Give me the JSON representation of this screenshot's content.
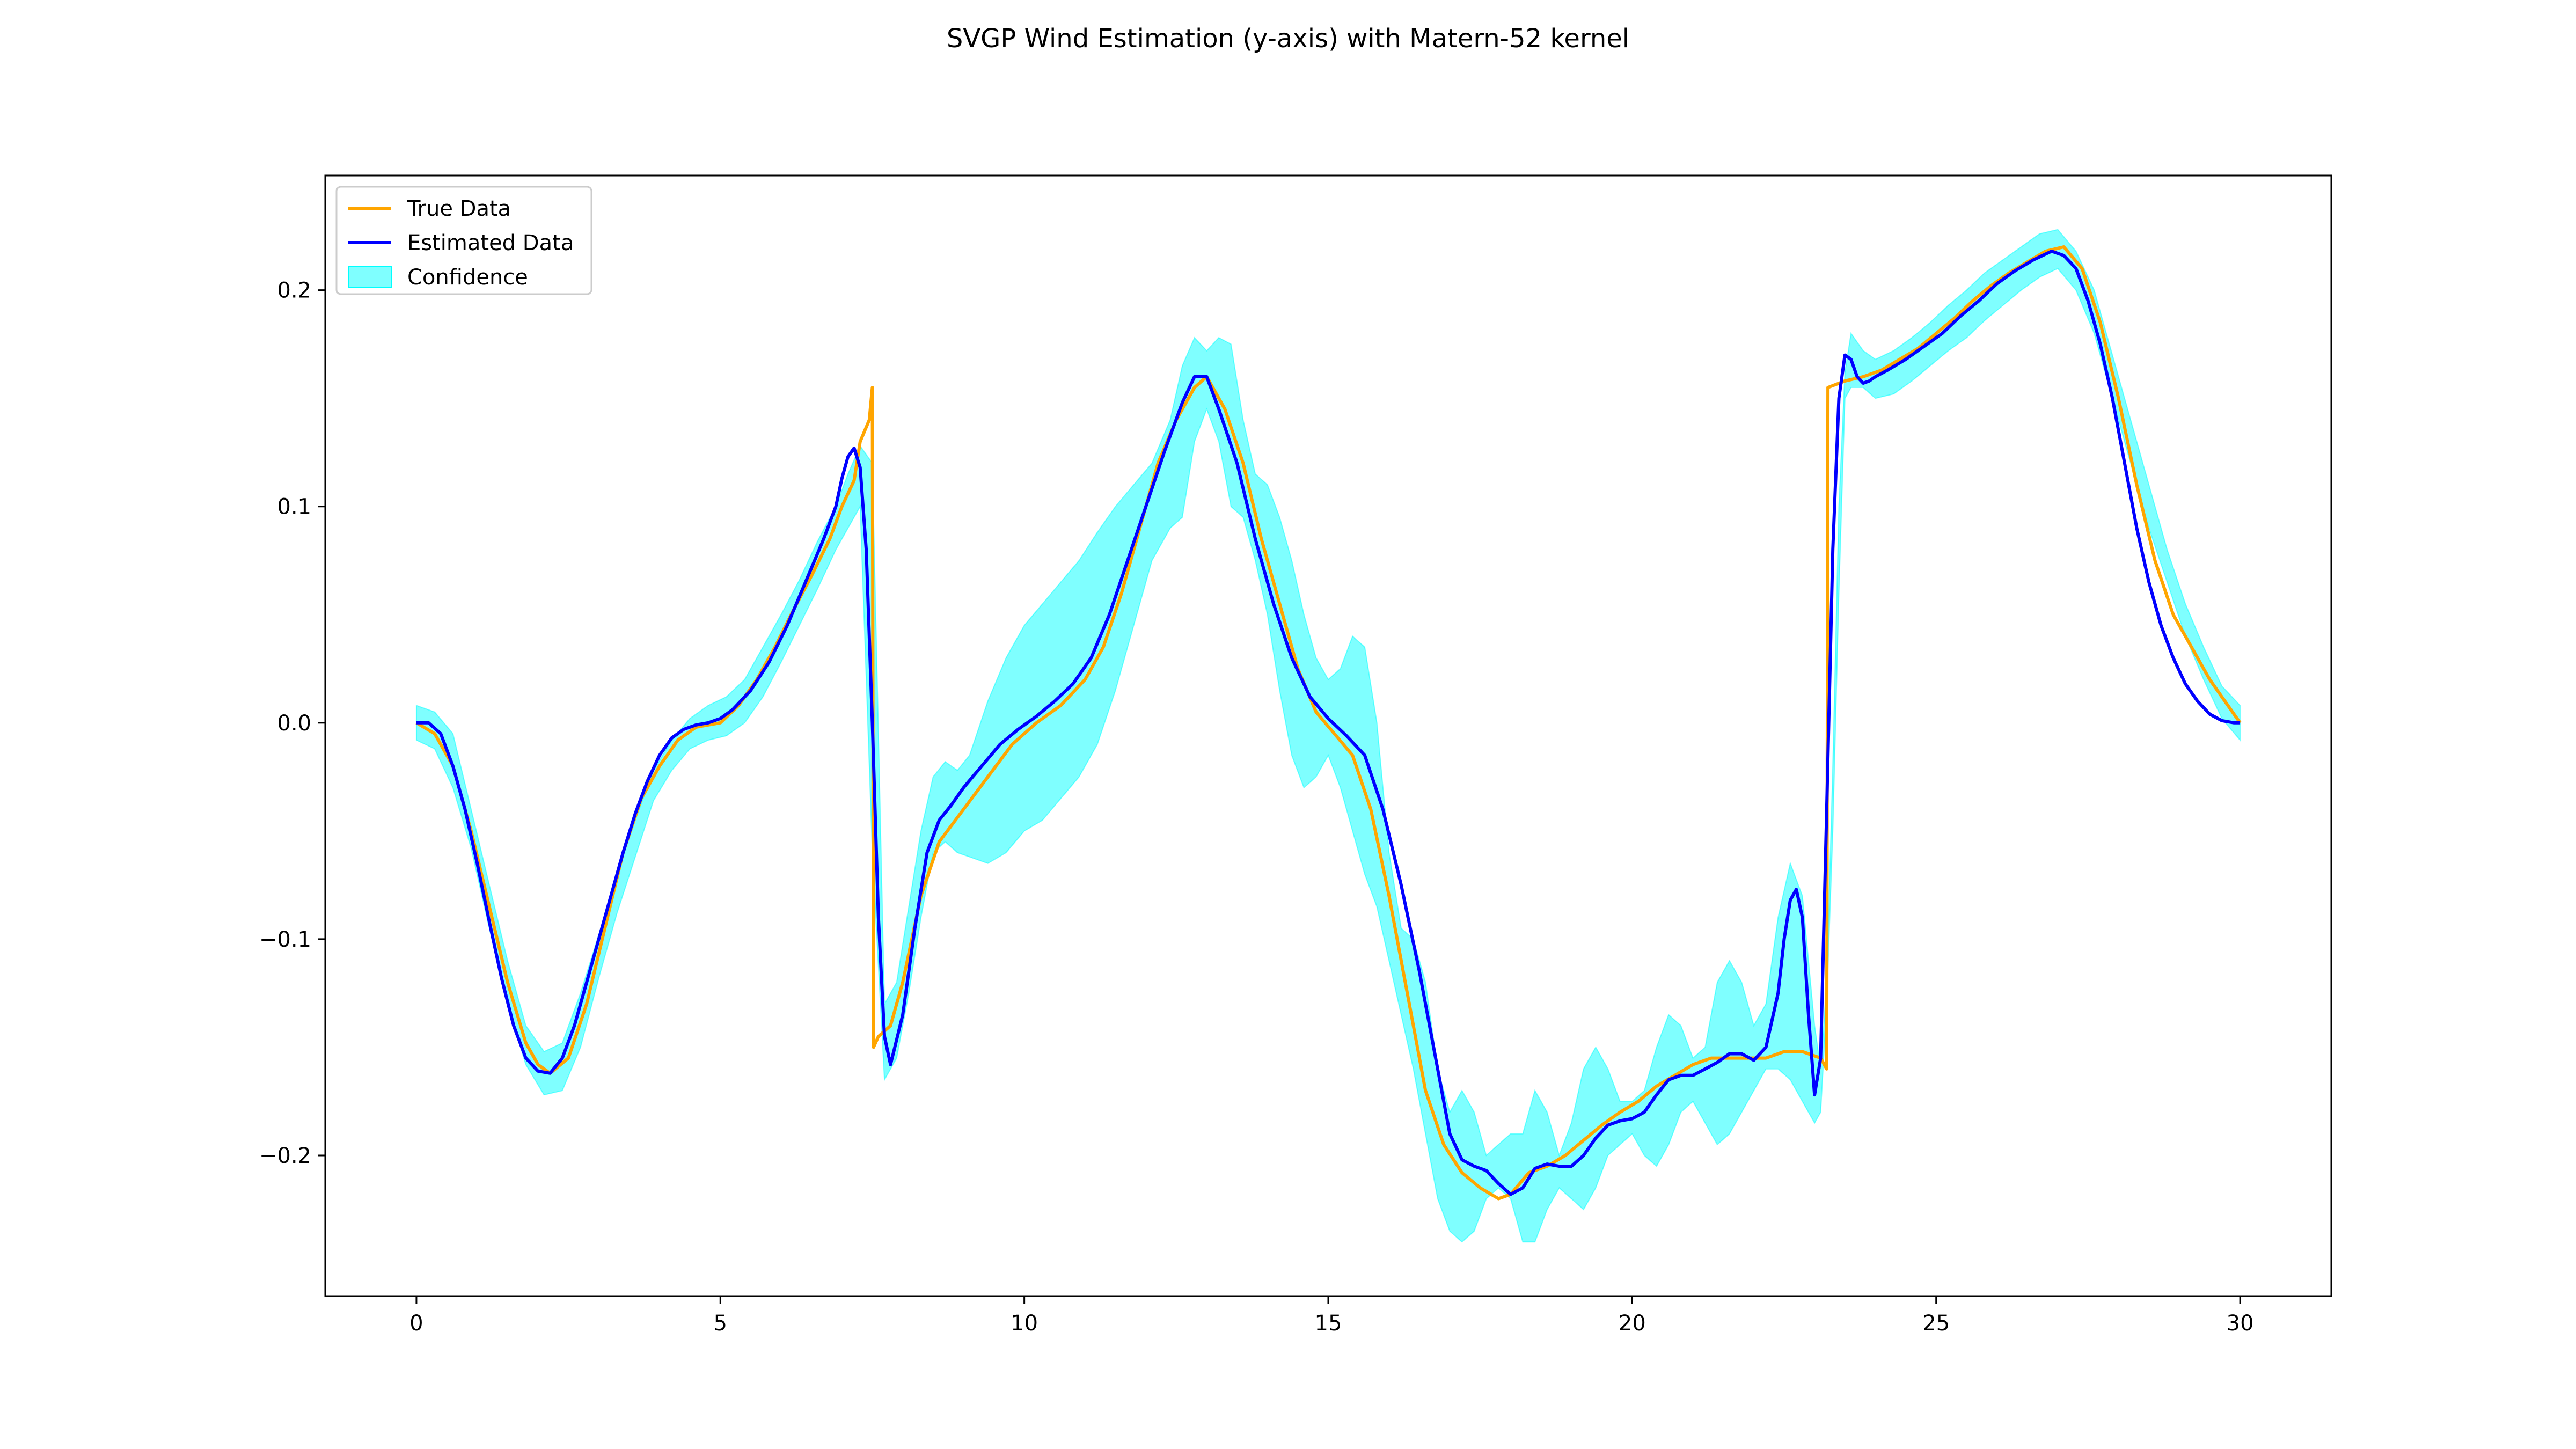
{
  "chart_data": {
    "type": "line",
    "title": "SVGP Wind Estimation (y-axis) with Matern-52 kernel",
    "xlabel": "",
    "ylabel": "",
    "xlim": [
      -1.5,
      31.5
    ],
    "ylim": [
      -0.265,
      0.253
    ],
    "xticks": [
      0,
      5,
      10,
      15,
      20,
      25,
      30
    ],
    "yticks": [
      -0.2,
      -0.1,
      0.0,
      0.1,
      0.2
    ],
    "ytick_labels": [
      "−0.2",
      "−0.1",
      "0.0",
      "0.1",
      "0.2"
    ],
    "grid": false,
    "legend_position": "upper-left",
    "colors": {
      "true": "#ffa500",
      "estimated": "#0000ff",
      "confidence": "#00ffff"
    },
    "series": [
      {
        "name": "True Data",
        "x": [
          0,
          0.3,
          0.6,
          0.9,
          1.2,
          1.5,
          1.8,
          2.0,
          2.2,
          2.5,
          2.8,
          3.1,
          3.4,
          3.7,
          4.0,
          4.3,
          4.6,
          5.0,
          5.3,
          5.6,
          5.9,
          6.2,
          6.5,
          6.8,
          7.0,
          7.2,
          7.3,
          7.45,
          7.5,
          7.52,
          7.6,
          7.8,
          8.0,
          8.3,
          8.6,
          9.0,
          9.4,
          9.8,
          10.2,
          10.6,
          11.0,
          11.3,
          11.6,
          11.9,
          12.2,
          12.5,
          12.8,
          13.0,
          13.3,
          13.6,
          13.9,
          14.2,
          14.5,
          14.8,
          15.1,
          15.4,
          15.7,
          16.0,
          16.3,
          16.6,
          16.9,
          17.2,
          17.5,
          17.8,
          18.0,
          18.3,
          18.6,
          18.9,
          19.2,
          19.5,
          19.8,
          20.1,
          20.4,
          20.7,
          21.0,
          21.3,
          21.6,
          21.9,
          22.2,
          22.5,
          22.8,
          23.1,
          23.2,
          23.22,
          23.5,
          23.8,
          24.1,
          24.4,
          24.7,
          25.0,
          25.3,
          25.6,
          25.9,
          26.2,
          26.5,
          26.8,
          27.1,
          27.4,
          27.7,
          28.0,
          28.3,
          28.6,
          28.9,
          29.2,
          29.5,
          29.8,
          30.0
        ],
        "y": [
          0.0,
          -0.005,
          -0.02,
          -0.05,
          -0.085,
          -0.12,
          -0.148,
          -0.158,
          -0.162,
          -0.155,
          -0.13,
          -0.095,
          -0.06,
          -0.035,
          -0.02,
          -0.008,
          -0.002,
          0.0,
          0.008,
          0.02,
          0.035,
          0.052,
          0.068,
          0.085,
          0.1,
          0.112,
          0.13,
          0.14,
          0.155,
          -0.15,
          -0.145,
          -0.14,
          -0.12,
          -0.08,
          -0.055,
          -0.04,
          -0.025,
          -0.01,
          0.0,
          0.008,
          0.02,
          0.035,
          0.06,
          0.09,
          0.12,
          0.14,
          0.155,
          0.16,
          0.145,
          0.12,
          0.085,
          0.055,
          0.025,
          0.005,
          -0.005,
          -0.015,
          -0.04,
          -0.08,
          -0.125,
          -0.17,
          -0.195,
          -0.208,
          -0.215,
          -0.22,
          -0.218,
          -0.208,
          -0.205,
          -0.2,
          -0.193,
          -0.186,
          -0.18,
          -0.175,
          -0.168,
          -0.163,
          -0.158,
          -0.155,
          -0.155,
          -0.155,
          -0.155,
          -0.152,
          -0.152,
          -0.155,
          -0.16,
          0.155,
          0.158,
          0.16,
          0.163,
          0.168,
          0.173,
          0.18,
          0.187,
          0.195,
          0.202,
          0.208,
          0.213,
          0.218,
          0.22,
          0.21,
          0.185,
          0.15,
          0.11,
          0.075,
          0.05,
          0.035,
          0.02,
          0.008,
          0.0
        ]
      },
      {
        "name": "Estimated Data",
        "x": [
          0,
          0.2,
          0.4,
          0.6,
          0.8,
          1.0,
          1.2,
          1.4,
          1.6,
          1.8,
          2.0,
          2.2,
          2.4,
          2.6,
          2.8,
          3.0,
          3.2,
          3.4,
          3.6,
          3.8,
          4.0,
          4.2,
          4.4,
          4.6,
          4.8,
          5.0,
          5.2,
          5.5,
          5.8,
          6.1,
          6.4,
          6.7,
          6.9,
          7.0,
          7.1,
          7.2,
          7.3,
          7.4,
          7.5,
          7.6,
          7.7,
          7.8,
          8.0,
          8.2,
          8.4,
          8.6,
          8.8,
          9.0,
          9.3,
          9.6,
          9.9,
          10.2,
          10.5,
          10.8,
          11.1,
          11.4,
          11.7,
          12.0,
          12.3,
          12.6,
          12.8,
          13.0,
          13.2,
          13.5,
          13.8,
          14.1,
          14.4,
          14.7,
          15.0,
          15.3,
          15.6,
          15.9,
          16.2,
          16.5,
          16.8,
          17.0,
          17.2,
          17.4,
          17.6,
          17.8,
          18.0,
          18.2,
          18.4,
          18.6,
          18.8,
          19.0,
          19.2,
          19.4,
          19.6,
          19.8,
          20.0,
          20.2,
          20.4,
          20.6,
          20.8,
          21.0,
          21.2,
          21.4,
          21.6,
          21.8,
          22.0,
          22.2,
          22.4,
          22.5,
          22.6,
          22.7,
          22.8,
          22.9,
          23.0,
          23.1,
          23.2,
          23.3,
          23.4,
          23.5,
          23.6,
          23.7,
          23.8,
          23.9,
          24.0,
          24.2,
          24.5,
          24.8,
          25.1,
          25.4,
          25.7,
          26.0,
          26.3,
          26.6,
          26.9,
          27.1,
          27.3,
          27.5,
          27.7,
          27.9,
          28.1,
          28.3,
          28.5,
          28.7,
          28.9,
          29.1,
          29.3,
          29.5,
          29.7,
          29.9,
          30.0
        ],
        "y": [
          0.0,
          0.0,
          -0.005,
          -0.02,
          -0.04,
          -0.065,
          -0.092,
          -0.118,
          -0.14,
          -0.155,
          -0.161,
          -0.162,
          -0.155,
          -0.14,
          -0.12,
          -0.1,
          -0.08,
          -0.06,
          -0.042,
          -0.027,
          -0.015,
          -0.007,
          -0.003,
          -0.001,
          0.0,
          0.002,
          0.006,
          0.015,
          0.028,
          0.045,
          0.065,
          0.085,
          0.1,
          0.113,
          0.123,
          0.127,
          0.118,
          0.08,
          0.0,
          -0.09,
          -0.145,
          -0.158,
          -0.135,
          -0.095,
          -0.06,
          -0.045,
          -0.038,
          -0.03,
          -0.02,
          -0.01,
          -0.003,
          0.003,
          0.01,
          0.018,
          0.03,
          0.05,
          0.075,
          0.1,
          0.125,
          0.148,
          0.16,
          0.16,
          0.145,
          0.12,
          0.085,
          0.055,
          0.03,
          0.012,
          0.002,
          -0.006,
          -0.015,
          -0.04,
          -0.075,
          -0.115,
          -0.16,
          -0.19,
          -0.202,
          -0.205,
          -0.207,
          -0.213,
          -0.218,
          -0.215,
          -0.206,
          -0.204,
          -0.205,
          -0.205,
          -0.2,
          -0.192,
          -0.186,
          -0.184,
          -0.183,
          -0.18,
          -0.172,
          -0.165,
          -0.163,
          -0.163,
          -0.16,
          -0.157,
          -0.153,
          -0.153,
          -0.156,
          -0.15,
          -0.125,
          -0.1,
          -0.082,
          -0.077,
          -0.09,
          -0.135,
          -0.172,
          -0.155,
          -0.04,
          0.08,
          0.15,
          0.17,
          0.168,
          0.16,
          0.157,
          0.158,
          0.16,
          0.163,
          0.168,
          0.174,
          0.18,
          0.188,
          0.195,
          0.203,
          0.209,
          0.214,
          0.218,
          0.216,
          0.21,
          0.195,
          0.175,
          0.15,
          0.12,
          0.09,
          0.065,
          0.045,
          0.03,
          0.018,
          0.01,
          0.004,
          0.001,
          0.0,
          0.0
        ]
      },
      {
        "name": "Confidence",
        "x": [
          0,
          0.3,
          0.6,
          0.9,
          1.2,
          1.5,
          1.8,
          2.1,
          2.4,
          2.7,
          3.0,
          3.3,
          3.6,
          3.9,
          4.2,
          4.5,
          4.8,
          5.1,
          5.4,
          5.7,
          6.0,
          6.3,
          6.6,
          6.9,
          7.1,
          7.3,
          7.5,
          7.7,
          7.9,
          8.1,
          8.3,
          8.5,
          8.7,
          8.9,
          9.1,
          9.4,
          9.7,
          10.0,
          10.3,
          10.6,
          10.9,
          11.2,
          11.5,
          11.8,
          12.1,
          12.4,
          12.6,
          12.8,
          13.0,
          13.2,
          13.4,
          13.6,
          13.8,
          14.0,
          14.2,
          14.4,
          14.6,
          14.8,
          15.0,
          15.2,
          15.4,
          15.6,
          15.8,
          16.0,
          16.2,
          16.4,
          16.6,
          16.8,
          17.0,
          17.2,
          17.4,
          17.6,
          17.8,
          18.0,
          18.2,
          18.4,
          18.6,
          18.8,
          19.0,
          19.2,
          19.4,
          19.6,
          19.8,
          20.0,
          20.2,
          20.4,
          20.6,
          20.8,
          21.0,
          21.2,
          21.4,
          21.6,
          21.8,
          22.0,
          22.2,
          22.4,
          22.6,
          22.8,
          23.0,
          23.1,
          23.2,
          23.3,
          23.4,
          23.5,
          23.6,
          23.8,
          24.0,
          24.3,
          24.6,
          24.9,
          25.2,
          25.5,
          25.8,
          26.1,
          26.4,
          26.7,
          27.0,
          27.3,
          27.6,
          27.9,
          28.2,
          28.5,
          28.8,
          29.1,
          29.4,
          29.7,
          30.0
        ],
        "upper": [
          0.008,
          0.005,
          -0.005,
          -0.04,
          -0.075,
          -0.11,
          -0.14,
          -0.152,
          -0.148,
          -0.125,
          -0.098,
          -0.07,
          -0.045,
          -0.022,
          -0.008,
          0.002,
          0.008,
          0.012,
          0.02,
          0.035,
          0.05,
          0.066,
          0.084,
          0.1,
          0.115,
          0.128,
          0.12,
          -0.13,
          -0.12,
          -0.085,
          -0.05,
          -0.025,
          -0.018,
          -0.022,
          -0.015,
          0.01,
          0.03,
          0.045,
          0.055,
          0.065,
          0.075,
          0.088,
          0.1,
          0.11,
          0.12,
          0.14,
          0.165,
          0.178,
          0.172,
          0.178,
          0.175,
          0.14,
          0.115,
          0.11,
          0.095,
          0.075,
          0.05,
          0.03,
          0.02,
          0.025,
          0.04,
          0.035,
          0.0,
          -0.06,
          -0.095,
          -0.1,
          -0.12,
          -0.16,
          -0.18,
          -0.17,
          -0.18,
          -0.2,
          -0.195,
          -0.19,
          -0.19,
          -0.17,
          -0.18,
          -0.2,
          -0.185,
          -0.16,
          -0.15,
          -0.16,
          -0.175,
          -0.175,
          -0.17,
          -0.15,
          -0.135,
          -0.14,
          -0.155,
          -0.15,
          -0.12,
          -0.11,
          -0.12,
          -0.14,
          -0.13,
          -0.09,
          -0.065,
          -0.08,
          -0.14,
          -0.16,
          -0.12,
          -0.02,
          0.1,
          0.162,
          0.18,
          0.172,
          0.168,
          0.172,
          0.178,
          0.185,
          0.193,
          0.2,
          0.208,
          0.214,
          0.22,
          0.226,
          0.228,
          0.218,
          0.2,
          0.17,
          0.14,
          0.11,
          0.08,
          0.055,
          0.035,
          0.017,
          0.008
        ],
        "lower": [
          -0.008,
          -0.012,
          -0.03,
          -0.058,
          -0.095,
          -0.13,
          -0.158,
          -0.172,
          -0.17,
          -0.15,
          -0.118,
          -0.088,
          -0.062,
          -0.036,
          -0.022,
          -0.012,
          -0.008,
          -0.006,
          0.0,
          0.012,
          0.028,
          0.045,
          0.062,
          0.08,
          0.09,
          0.1,
          -0.06,
          -0.165,
          -0.155,
          -0.125,
          -0.09,
          -0.06,
          -0.055,
          -0.06,
          -0.062,
          -0.065,
          -0.06,
          -0.05,
          -0.045,
          -0.035,
          -0.025,
          -0.01,
          0.015,
          0.045,
          0.075,
          0.09,
          0.095,
          0.13,
          0.145,
          0.13,
          0.1,
          0.095,
          0.075,
          0.05,
          0.015,
          -0.015,
          -0.03,
          -0.025,
          -0.015,
          -0.03,
          -0.05,
          -0.07,
          -0.085,
          -0.11,
          -0.135,
          -0.16,
          -0.19,
          -0.22,
          -0.235,
          -0.24,
          -0.235,
          -0.22,
          -0.215,
          -0.22,
          -0.24,
          -0.24,
          -0.225,
          -0.215,
          -0.22,
          -0.225,
          -0.215,
          -0.2,
          -0.195,
          -0.19,
          -0.2,
          -0.205,
          -0.195,
          -0.18,
          -0.175,
          -0.185,
          -0.195,
          -0.19,
          -0.18,
          -0.17,
          -0.16,
          -0.16,
          -0.165,
          -0.175,
          -0.185,
          -0.18,
          -0.13,
          -0.05,
          0.06,
          0.15,
          0.155,
          0.155,
          0.15,
          0.152,
          0.158,
          0.165,
          0.172,
          0.178,
          0.186,
          0.193,
          0.2,
          0.206,
          0.21,
          0.2,
          0.18,
          0.15,
          0.12,
          0.09,
          0.065,
          0.04,
          0.02,
          0.002,
          -0.008
        ]
      }
    ]
  }
}
